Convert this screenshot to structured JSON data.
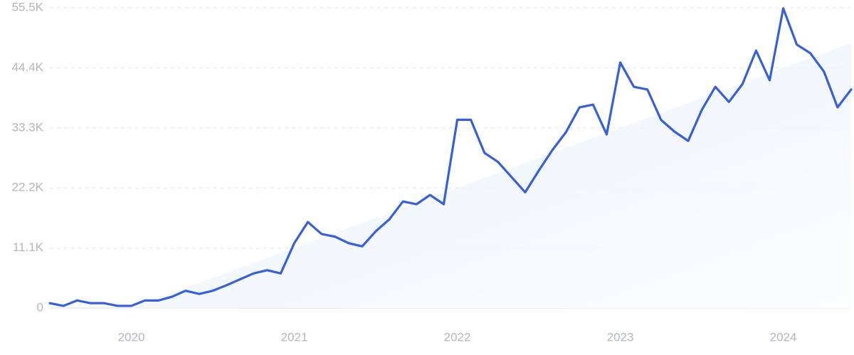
{
  "chart_data": {
    "type": "line",
    "x": [
      2019.5,
      2019.5833,
      2019.6667,
      2019.75,
      2019.8333,
      2019.9167,
      2020,
      2020.0833,
      2020.1667,
      2020.25,
      2020.3333,
      2020.4167,
      2020.5,
      2020.5833,
      2020.6667,
      2020.75,
      2020.8333,
      2020.9167,
      2021,
      2021.0833,
      2021.1667,
      2021.25,
      2021.3333,
      2021.4167,
      2021.5,
      2021.5833,
      2021.6667,
      2021.75,
      2021.8333,
      2021.9167,
      2022,
      2022.0833,
      2022.1667,
      2022.25,
      2022.3333,
      2022.4167,
      2022.5,
      2022.5833,
      2022.6667,
      2022.75,
      2022.8333,
      2022.9167,
      2023,
      2023.0833,
      2023.1667,
      2023.25,
      2023.3333,
      2023.4167,
      2023.5,
      2023.5833,
      2023.6667,
      2023.75,
      2023.8333,
      2023.9167,
      2024,
      2024.0833,
      2024.1667,
      2024.25,
      2024.3333,
      2024.4167
    ],
    "series": [
      {
        "color": "#3660db",
        "values": [
          900,
          400,
          1400,
          900,
          900,
          400,
          400,
          1400,
          1400,
          2100,
          3200,
          2600,
          3200,
          4200,
          5300,
          6400,
          7000,
          6400,
          12000,
          15900,
          13700,
          13200,
          12000,
          11400,
          14200,
          16400,
          19700,
          19200,
          20900,
          19200,
          34800,
          34800,
          28700,
          27000,
          24200,
          21400,
          25400,
          29200,
          32500,
          37100,
          37600,
          32100,
          45400,
          40900,
          40400,
          34800,
          32600,
          30900,
          36600,
          40900,
          38100,
          41400,
          47600,
          42100,
          55400,
          48700,
          47100,
          43700,
          37100,
          40400
        ]
      }
    ],
    "trend": {
      "color": "#dce8fb",
      "x": [
        2020,
        2024.4167
      ],
      "values": [
        0,
        49000
      ]
    },
    "xlim": [
      2019.5,
      2024.4167
    ],
    "xticks": [
      2020,
      2021,
      2022,
      2023,
      2024
    ],
    "ylim": [
      0,
      55500
    ],
    "yticks": [
      0,
      {
        "value": 11100,
        "label": "11.1K"
      },
      {
        "value": 22200,
        "label": "22.2K"
      },
      {
        "value": 33300,
        "label": "33.3K"
      },
      {
        "value": 44400,
        "label": "44.4K"
      },
      {
        "value": 55500,
        "label": "55.5K"
      }
    ],
    "grid": true
  }
}
